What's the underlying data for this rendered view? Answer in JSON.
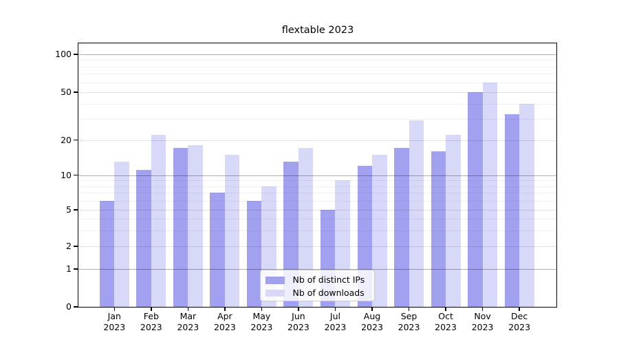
{
  "chart_data": {
    "type": "bar",
    "title": "flextable 2023",
    "categories": [
      {
        "label": "Jan",
        "sublabel": "2023"
      },
      {
        "label": "Feb",
        "sublabel": "2023"
      },
      {
        "label": "Mar",
        "sublabel": "2023"
      },
      {
        "label": "Apr",
        "sublabel": "2023"
      },
      {
        "label": "May",
        "sublabel": "2023"
      },
      {
        "label": "Jun",
        "sublabel": "2023"
      },
      {
        "label": "Jul",
        "sublabel": "2023"
      },
      {
        "label": "Aug",
        "sublabel": "2023"
      },
      {
        "label": "Sep",
        "sublabel": "2023"
      },
      {
        "label": "Oct",
        "sublabel": "2023"
      },
      {
        "label": "Nov",
        "sublabel": "2023"
      },
      {
        "label": "Dec",
        "sublabel": "2023"
      }
    ],
    "series": [
      {
        "name": "Nb of distinct IPs",
        "color": "#a1a1f0",
        "values": [
          6,
          11,
          17,
          7,
          6,
          13,
          5,
          12,
          17,
          16,
          50,
          33
        ]
      },
      {
        "name": "Nb of downloads",
        "color": "#d8d8f8",
        "values": [
          13,
          22,
          18,
          15,
          8,
          17,
          9,
          15,
          29,
          22,
          60,
          40
        ]
      }
    ],
    "y_axis": {
      "scale": "log-like",
      "tick_values": [
        0,
        1,
        2,
        5,
        10,
        20,
        50,
        100
      ],
      "tick_labels": [
        "0",
        "1",
        "2",
        "5",
        "10",
        "20",
        "50",
        "100"
      ],
      "ylim": [
        0,
        112
      ]
    },
    "grid": true,
    "legend_position": "bottom-center"
  }
}
